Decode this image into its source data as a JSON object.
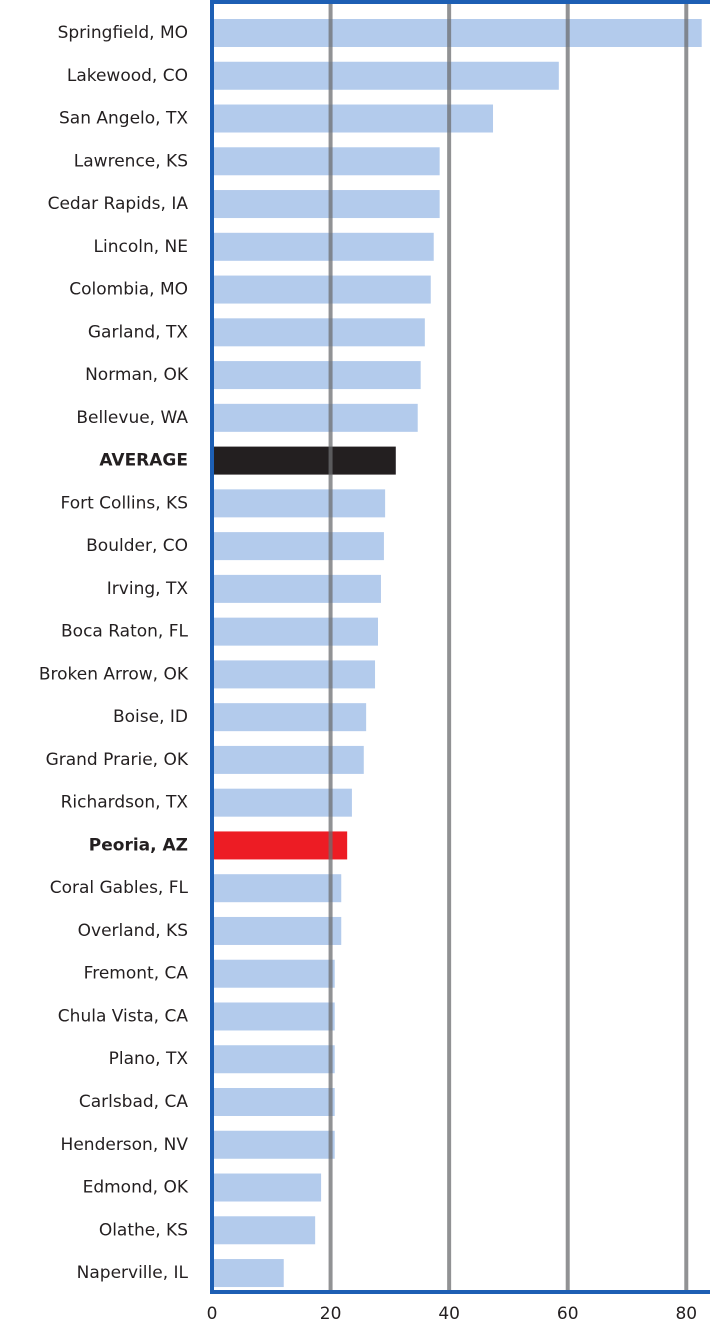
{
  "chart_data": {
    "type": "bar",
    "orientation": "horizontal",
    "categories": [
      "Springfield, MO",
      "Lakewood, CO",
      "San Angelo, TX",
      "Lawrence, KS",
      "Cedar Rapids, IA",
      "Lincoln, NE",
      "Colombia, MO",
      "Garland, TX",
      "Norman, OK",
      "Bellevue, WA",
      "AVERAGE",
      "Fort Collins, KS",
      "Boulder, CO",
      "Irving, TX",
      "Boca Raton, FL",
      "Broken Arrow, OK",
      "Boise, ID",
      "Grand Prarie, OK",
      "Richardson, TX",
      "Peoria, AZ",
      "Coral Gables, FL",
      "Overland, KS",
      "Fremont, CA",
      "Chula Vista, CA",
      "Plano, TX",
      "Carlsbad, CA",
      "Henderson, NV",
      "Edmond, OK",
      "Olathe, KS",
      "Naperville, IL"
    ],
    "values": [
      82.6,
      58.5,
      47.4,
      38.4,
      38.4,
      37.4,
      36.9,
      35.9,
      35.2,
      34.7,
      31,
      29.2,
      29,
      28.5,
      28,
      27.5,
      26,
      25.6,
      23.6,
      22.8,
      21.8,
      21.8,
      20.7,
      20.7,
      20.7,
      20.7,
      20.7,
      18.4,
      17.4,
      12.1
    ],
    "color": "#b3cbec",
    "colors": [
      "#b3cbec",
      "#b3cbec",
      "#b3cbec",
      "#b3cbec",
      "#b3cbec",
      "#b3cbec",
      "#b3cbec",
      "#b3cbec",
      "#b3cbec",
      "#b3cbec",
      "#231f20",
      "#b3cbec",
      "#b3cbec",
      "#b3cbec",
      "#b3cbec",
      "#b3cbec",
      "#b3cbec",
      "#b3cbec",
      "#b3cbec",
      "#ed1c24",
      "#b3cbec",
      "#b3cbec",
      "#b3cbec",
      "#b3cbec",
      "#b3cbec",
      "#b3cbec",
      "#b3cbec",
      "#b3cbec",
      "#b3cbec",
      "#b3cbec"
    ],
    "xlim": [
      0,
      84
    ],
    "xticks": [
      0,
      20,
      40,
      60,
      80
    ],
    "grid": true
  }
}
